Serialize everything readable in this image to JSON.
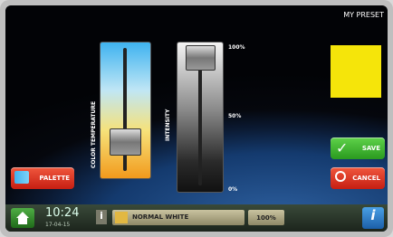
{
  "header": {
    "title": "MY PRESET"
  },
  "color_slider": {
    "label": "COLOR TEMPERATURE"
  },
  "intensity_slider": {
    "label": "INTENSITY",
    "ticks": [
      "100%",
      "50%",
      "0%"
    ]
  },
  "buttons": {
    "palette": "PALETTE",
    "save": "SAVE",
    "cancel": "CANCEL"
  },
  "status_bar": {
    "time": "10:24",
    "date": "17-04-15",
    "preset": "NORMAL WHITE",
    "level": "100%"
  }
}
